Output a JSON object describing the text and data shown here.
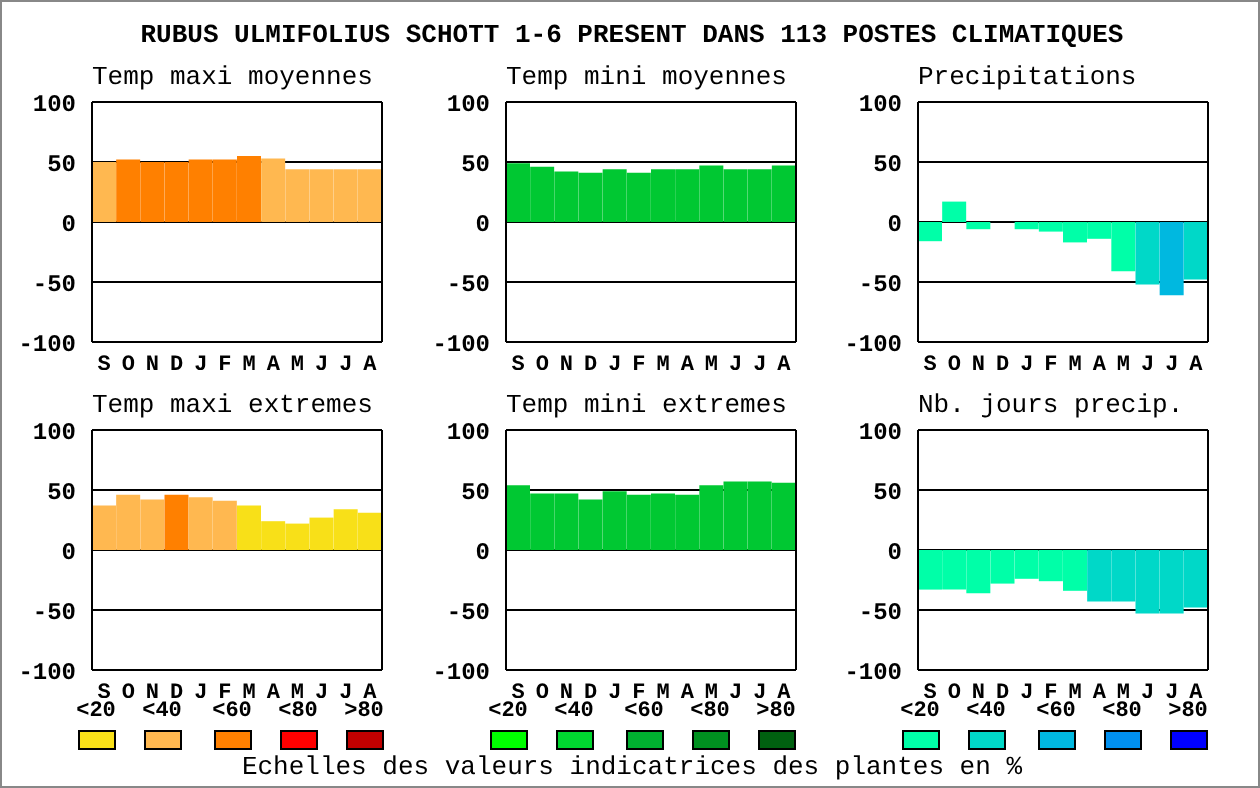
{
  "chart_data": [
    {
      "type": "other",
      "title": "RUBUS ULMIFOLIUS SCHOTT 1-6 PRESENT DANS 113 POSTES CLIMATIQUES"
    },
    {
      "type": "bar",
      "title": "Temp maxi moyennes",
      "categories": [
        "S",
        "O",
        "N",
        "D",
        "J",
        "F",
        "M",
        "A",
        "M",
        "J",
        "J",
        "A"
      ],
      "values": [
        50,
        52,
        50,
        50,
        52,
        52,
        55,
        53,
        44,
        44,
        44,
        44
      ],
      "colors": [
        "#ffb850",
        "#ff8000",
        "#ff8000",
        "#ff8000",
        "#ff8000",
        "#ff8000",
        "#ff8000",
        "#ffb850",
        "#ffb850",
        "#ffb850",
        "#ffb850",
        "#ffb850"
      ],
      "ylim": [
        -100,
        100
      ],
      "yticks": [
        -100,
        -50,
        0,
        50,
        100
      ],
      "grid": "y"
    },
    {
      "type": "bar",
      "title": "Temp mini moyennes",
      "categories": [
        "S",
        "O",
        "N",
        "D",
        "J",
        "F",
        "M",
        "A",
        "M",
        "J",
        "J",
        "A"
      ],
      "values": [
        49,
        46,
        42,
        41,
        44,
        41,
        44,
        44,
        47,
        44,
        44,
        47
      ],
      "colors": [
        "#00c832",
        "#00c832",
        "#00c832",
        "#00c832",
        "#00c832",
        "#00c832",
        "#00c832",
        "#00c832",
        "#00c832",
        "#00c832",
        "#00c832",
        "#00c832"
      ],
      "ylim": [
        -100,
        100
      ],
      "yticks": [
        -100,
        -50,
        0,
        50,
        100
      ],
      "grid": "y"
    },
    {
      "type": "bar",
      "title": "Precipitations",
      "categories": [
        "S",
        "O",
        "N",
        "D",
        "J",
        "F",
        "M",
        "A",
        "M",
        "J",
        "J",
        "A"
      ],
      "values": [
        -16,
        17,
        -6,
        0,
        -6,
        -8,
        -17,
        -14,
        -41,
        -52,
        -61,
        -48
      ],
      "colors": [
        "#00ffa8",
        "#00ffa8",
        "#00ffa8",
        "#00ffa8",
        "#00ffa8",
        "#00ffa8",
        "#00ffa8",
        "#00ffa8",
        "#00ffa8",
        "#00d8c8",
        "#00b8e0",
        "#00d8c8"
      ],
      "ylim": [
        -100,
        100
      ],
      "yticks": [
        -100,
        -50,
        0,
        50,
        100
      ],
      "grid": "y"
    },
    {
      "type": "bar",
      "title": "Temp maxi extremes",
      "categories": [
        "S",
        "O",
        "N",
        "D",
        "J",
        "F",
        "M",
        "A",
        "M",
        "J",
        "J",
        "A"
      ],
      "values": [
        37,
        46,
        42,
        46,
        44,
        41,
        37,
        24,
        22,
        27,
        34,
        31
      ],
      "colors": [
        "#ffb850",
        "#ffb850",
        "#ffb850",
        "#ff8000",
        "#ffb850",
        "#ffb850",
        "#f8e018",
        "#f8e018",
        "#f8e018",
        "#f8e018",
        "#f8e018",
        "#f8e018"
      ],
      "ylim": [
        -100,
        100
      ],
      "yticks": [
        -100,
        -50,
        0,
        50,
        100
      ],
      "grid": "y"
    },
    {
      "type": "bar",
      "title": "Temp mini extremes",
      "categories": [
        "S",
        "O",
        "N",
        "D",
        "J",
        "F",
        "M",
        "A",
        "M",
        "J",
        "J",
        "A"
      ],
      "values": [
        54,
        47,
        47,
        42,
        49,
        46,
        47,
        46,
        54,
        57,
        57,
        56
      ],
      "colors": [
        "#00c832",
        "#00c832",
        "#00c832",
        "#00c832",
        "#00c832",
        "#00c832",
        "#00c832",
        "#00c832",
        "#00c832",
        "#00c832",
        "#00c832",
        "#00c832"
      ],
      "ylim": [
        -100,
        100
      ],
      "yticks": [
        -100,
        -50,
        0,
        50,
        100
      ],
      "grid": "y"
    },
    {
      "type": "bar",
      "title": "Nb. jours precip.",
      "categories": [
        "S",
        "O",
        "N",
        "D",
        "J",
        "F",
        "M",
        "A",
        "M",
        "J",
        "J",
        "A"
      ],
      "values": [
        -33,
        -33,
        -36,
        -28,
        -24,
        -26,
        -34,
        -43,
        -43,
        -53,
        -53,
        -48
      ],
      "colors": [
        "#00ffa8",
        "#00ffa8",
        "#00ffa8",
        "#00ffa8",
        "#00ffa8",
        "#00ffa8",
        "#00ffa8",
        "#00d8c8",
        "#00d8c8",
        "#00d8c8",
        "#00d8c8",
        "#00d8c8"
      ],
      "ylim": [
        -100,
        100
      ],
      "yticks": [
        -100,
        -50,
        0,
        50,
        100
      ],
      "grid": "y"
    },
    {
      "type": "other",
      "categories": [
        "<20",
        "<40",
        "<60",
        "<80",
        ">80"
      ],
      "colors": [
        "#f8e018",
        "#ffb850",
        "#ff8000",
        "#ff0000",
        "#c00000"
      ]
    },
    {
      "type": "other",
      "categories": [
        "<20",
        "<40",
        "<60",
        "<80",
        ">80"
      ],
      "colors": [
        "#00ff00",
        "#00d830",
        "#00b030",
        "#009020",
        "#006010"
      ]
    },
    {
      "type": "other",
      "categories": [
        "<20",
        "<40",
        "<60",
        "<80",
        ">80"
      ],
      "colors": [
        "#00ffa8",
        "#00d8c8",
        "#00b8e0",
        "#0090f0",
        "#0000ff"
      ]
    },
    {
      "type": "other",
      "annotations": [
        "Echelles des valeurs indicatrices des plantes en %"
      ]
    }
  ]
}
